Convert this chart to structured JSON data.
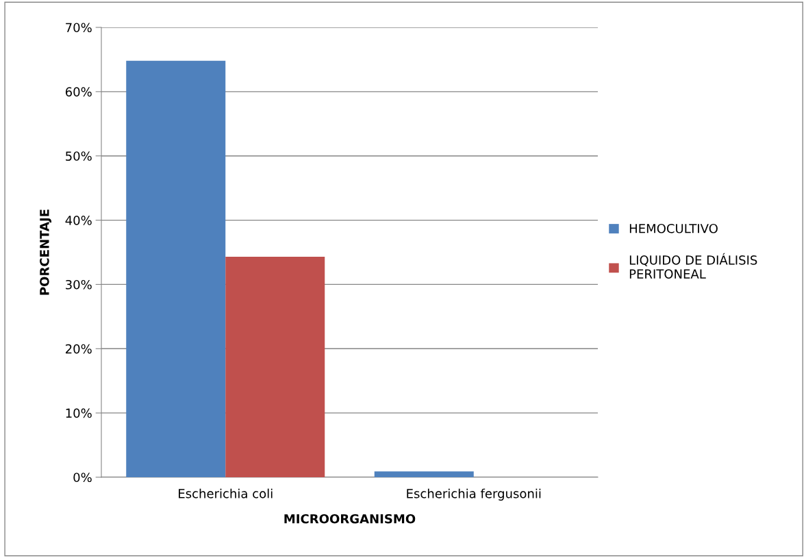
{
  "chart_data": {
    "type": "bar",
    "xlabel": "MICROORGANISMO",
    "ylabel": "PORCENTAJE",
    "categories": [
      "Escherichia coli",
      "Escherichia fergusonii"
    ],
    "series": [
      {
        "name": "HEMOCULTIVO",
        "color": "#4f81bd",
        "values": [
          64.8,
          0.9
        ]
      },
      {
        "name": "LIQUIDO DE DIÁLISIS\nPERITONEAL",
        "color": "#c0504d",
        "values": [
          34.3,
          0
        ]
      }
    ],
    "ylim": [
      0,
      70
    ],
    "yticks": [
      {
        "value": 0,
        "label": "0%"
      },
      {
        "value": 10,
        "label": "10%"
      },
      {
        "value": 20,
        "label": "20%"
      },
      {
        "value": 30,
        "label": "30%"
      },
      {
        "value": 40,
        "label": "40%"
      },
      {
        "value": 50,
        "label": "50%"
      },
      {
        "value": 60,
        "label": "60%"
      },
      {
        "value": 70,
        "label": "70%"
      }
    ],
    "grid": "y",
    "legend": "right"
  }
}
